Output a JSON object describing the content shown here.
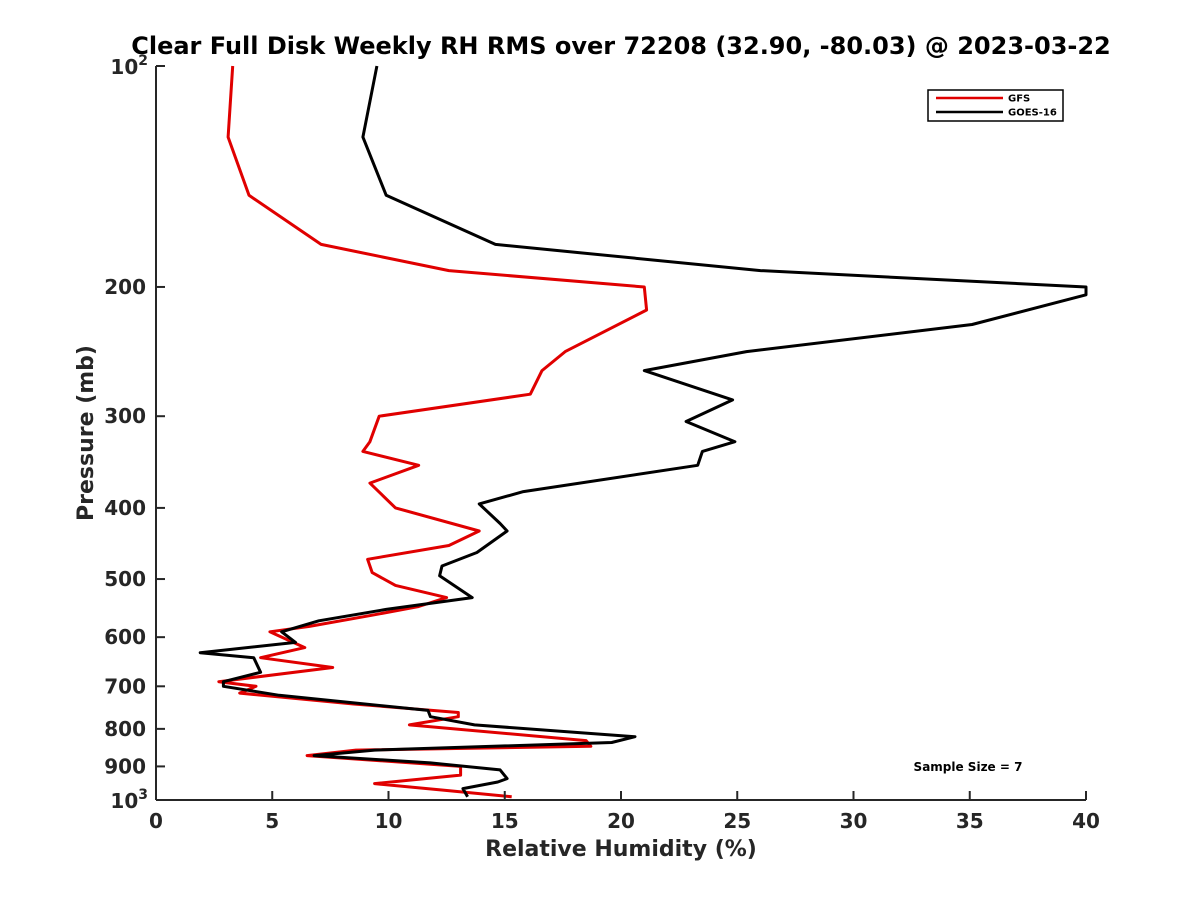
{
  "chart_data": {
    "type": "line",
    "title": "Clear Full Disk Weekly RH RMS over 72208 (32.90, -80.03) @ 2023-03-22",
    "xlabel": "Relative Humidity (%)",
    "ylabel": "Pressure (mb)",
    "xlim": [
      0,
      40
    ],
    "ylim": [
      100,
      1000
    ],
    "yscale": "log",
    "y_reversed": true,
    "x_ticks": [
      "0",
      "5",
      "10",
      "15",
      "20",
      "25",
      "30",
      "35",
      "40"
    ],
    "y_ticks": [
      {
        "value": 100,
        "label": "10",
        "sup": "2"
      },
      {
        "value": 200,
        "label": "200",
        "sup": ""
      },
      {
        "value": 300,
        "label": "300",
        "sup": ""
      },
      {
        "value": 400,
        "label": "400",
        "sup": ""
      },
      {
        "value": 500,
        "label": "500",
        "sup": ""
      },
      {
        "value": 600,
        "label": "600",
        "sup": ""
      },
      {
        "value": 700,
        "label": "700",
        "sup": ""
      },
      {
        "value": 800,
        "label": "800",
        "sup": ""
      },
      {
        "value": 900,
        "label": "900",
        "sup": ""
      },
      {
        "value": 1000,
        "label": "10",
        "sup": "3"
      }
    ],
    "grid": false,
    "legend_position": "top-right",
    "annotation": "Sample Size = 7",
    "series": [
      {
        "name": "GFS",
        "color": "#e00000",
        "points": [
          [
            3.3,
            100
          ],
          [
            3.1,
            125
          ],
          [
            4.0,
            150
          ],
          [
            7.1,
            175
          ],
          [
            12.6,
            190
          ],
          [
            21.0,
            200
          ],
          [
            21.1,
            215
          ],
          [
            17.6,
            245
          ],
          [
            16.6,
            260
          ],
          [
            16.1,
            280
          ],
          [
            9.6,
            300
          ],
          [
            9.2,
            325
          ],
          [
            8.9,
            335
          ],
          [
            11.3,
            350
          ],
          [
            9.2,
            370
          ],
          [
            10.3,
            400
          ],
          [
            13.9,
            430
          ],
          [
            12.6,
            450
          ],
          [
            9.1,
            470
          ],
          [
            9.3,
            490
          ],
          [
            10.3,
            510
          ],
          [
            12.5,
            530
          ],
          [
            11.3,
            545
          ],
          [
            9.3,
            560
          ],
          [
            6.6,
            580
          ],
          [
            4.9,
            590
          ],
          [
            6.4,
            620
          ],
          [
            4.5,
            640
          ],
          [
            7.6,
            660
          ],
          [
            2.7,
            690
          ],
          [
            4.3,
            700
          ],
          [
            3.6,
            715
          ],
          [
            8.5,
            740
          ],
          [
            13.0,
            760
          ],
          [
            13.0,
            770
          ],
          [
            10.9,
            790
          ],
          [
            18.5,
            830
          ],
          [
            18.7,
            845
          ],
          [
            8.6,
            855
          ],
          [
            6.5,
            870
          ],
          [
            13.1,
            900
          ],
          [
            13.1,
            925
          ],
          [
            9.4,
            950
          ],
          [
            12.4,
            970
          ],
          [
            15.3,
            990
          ]
        ]
      },
      {
        "name": "GOES-16",
        "color": "#000000",
        "points": [
          [
            9.5,
            100
          ],
          [
            8.9,
            125
          ],
          [
            9.9,
            150
          ],
          [
            14.6,
            175
          ],
          [
            26.0,
            190
          ],
          [
            40.0,
            200
          ],
          [
            40.0,
            205
          ],
          [
            35.1,
            225
          ],
          [
            25.4,
            245
          ],
          [
            21.0,
            260
          ],
          [
            24.8,
            285
          ],
          [
            22.8,
            305
          ],
          [
            24.9,
            325
          ],
          [
            23.5,
            335
          ],
          [
            23.3,
            350
          ],
          [
            15.8,
            380
          ],
          [
            13.9,
            395
          ],
          [
            14.8,
            420
          ],
          [
            15.1,
            430
          ],
          [
            13.8,
            460
          ],
          [
            12.3,
            480
          ],
          [
            12.2,
            495
          ],
          [
            13.6,
            530
          ],
          [
            9.9,
            550
          ],
          [
            7.0,
            570
          ],
          [
            5.4,
            590
          ],
          [
            6.0,
            610
          ],
          [
            1.9,
            630
          ],
          [
            4.2,
            640
          ],
          [
            4.5,
            670
          ],
          [
            2.9,
            690
          ],
          [
            2.9,
            700
          ],
          [
            5.3,
            720
          ],
          [
            11.7,
            755
          ],
          [
            11.8,
            770
          ],
          [
            13.7,
            790
          ],
          [
            20.6,
            820
          ],
          [
            19.6,
            835
          ],
          [
            9.4,
            855
          ],
          [
            6.8,
            870
          ],
          [
            11.8,
            890
          ],
          [
            14.8,
            910
          ],
          [
            15.1,
            935
          ],
          [
            14.7,
            945
          ],
          [
            13.2,
            965
          ],
          [
            13.4,
            990
          ]
        ]
      }
    ]
  }
}
